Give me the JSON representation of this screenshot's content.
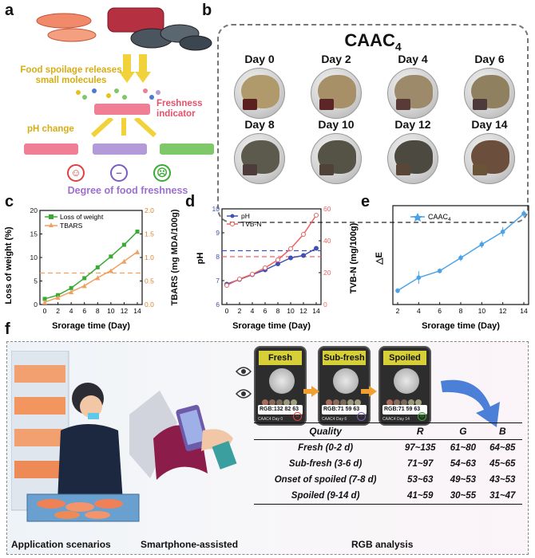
{
  "panel_letters": {
    "a": "a",
    "b": "b",
    "c": "c",
    "d": "d",
    "e": "e",
    "f": "f"
  },
  "panel_a": {
    "spoilage_text": "Food spoilage releases small molecules",
    "indicator_text": "Freshness indicator",
    "ph_change": "pH change",
    "degree": "Degree of food freshness",
    "colors": {
      "pink": "#f07f96",
      "purple": "#b39bd9",
      "green": "#7ec86a",
      "gold": "#e8c21a"
    }
  },
  "panel_b": {
    "title": "CAAC",
    "title_sub": "4",
    "days": [
      "Day 0",
      "Day 2",
      "Day 4",
      "Day 6",
      "Day 8",
      "Day 10",
      "Day 12",
      "Day 14"
    ],
    "shrimp_colors": [
      "#b09a6c",
      "#a78f67",
      "#9c8a6a",
      "#8f8060",
      "#5c5a4c",
      "#555246",
      "#4c4a40",
      "#6b4f3c"
    ],
    "film_colors": [
      "#5a2020",
      "#5c2626",
      "#5a3a36",
      "#4c3b3a",
      "#4d3c3a",
      "#4f4238",
      "#5a4636",
      "#6a5438"
    ]
  },
  "chart_data": [
    {
      "id": "c",
      "type": "line",
      "x": [
        0,
        2,
        4,
        6,
        8,
        10,
        12,
        14
      ],
      "xlabel": "Srorage time (Day)",
      "ylabel": "Loss of weight (%)",
      "y2label": "TBARS (mg MDA/100g)",
      "ylim": [
        0,
        20
      ],
      "y2lim": [
        0,
        2.0
      ],
      "yticks": [
        "0",
        "5",
        "10",
        "15",
        "20"
      ],
      "y2ticks": [
        "0.0",
        "0.5",
        "1.0",
        "1.5",
        "2.0"
      ],
      "threshold_y2": 0.67,
      "series": [
        {
          "name": "Loss of weight",
          "axis": "left",
          "color": "#3aaa35",
          "values": [
            1.2,
            2.0,
            3.5,
            5.6,
            7.9,
            10.2,
            12.7,
            15.5
          ]
        },
        {
          "name": "TBARS",
          "axis": "right",
          "color": "#f0a060",
          "values": [
            0.05,
            0.15,
            0.27,
            0.4,
            0.57,
            0.72,
            0.92,
            1.12
          ]
        }
      ]
    },
    {
      "id": "d",
      "type": "line",
      "x": [
        0,
        2,
        4,
        6,
        8,
        10,
        12,
        14
      ],
      "xlabel": "Srorage time (Day)",
      "ylabel": "pH",
      "y2label": "TVB-N (mg/100g)",
      "ylim": [
        6,
        10
      ],
      "y2lim": [
        0,
        60
      ],
      "yticks": [
        "6",
        "7",
        "8",
        "9",
        "10"
      ],
      "y2ticks": [
        "0",
        "20",
        "40",
        "60"
      ],
      "threshold_y": 8.25,
      "threshold_y2": 30,
      "series": [
        {
          "name": "pH",
          "axis": "left",
          "color": "#3f51b5",
          "values": [
            6.85,
            7.05,
            7.25,
            7.45,
            7.7,
            7.95,
            8.05,
            8.35
          ]
        },
        {
          "name": "TVB-N",
          "axis": "right",
          "color": "#f06060",
          "values": [
            12,
            16,
            19,
            23,
            28,
            35,
            44,
            56
          ]
        }
      ]
    },
    {
      "id": "e",
      "type": "line",
      "x": [
        2,
        4,
        6,
        8,
        10,
        12,
        14
      ],
      "xlabel": "Srorage time (Day)",
      "ylabel": "△E",
      "ylim": [
        0,
        25
      ],
      "yticks": [],
      "xticks": [
        "2",
        "4",
        "6",
        "8",
        "10",
        "12",
        "14"
      ],
      "series": [
        {
          "name": "CAAC4",
          "axis": "left",
          "color": "#4aa3e8",
          "values": [
            3.5,
            6.8,
            8.5,
            11.8,
            15.2,
            18.4,
            23.0
          ],
          "errors": [
            0.6,
            1.6,
            0.6,
            0.8,
            0.9,
            1.2,
            0.9
          ]
        }
      ]
    }
  ],
  "chart_labels": {
    "c_series1": "Loss of weight",
    "c_series2": "TBARS",
    "d_series1": "pH",
    "d_series2": "TVB-N",
    "e_series1": "CAAC",
    "e_series1_sub": "4"
  },
  "panel_f": {
    "phones": [
      {
        "label": "Fresh",
        "rgb": "RGB:132 82 63",
        "caption": "CAAC4  Day 0",
        "face": "☺",
        "face_color": "#e04040"
      },
      {
        "label": "Sub-fresh",
        "rgb": "RGB:71 59 63",
        "caption": "CAAC4  Day 6",
        "face": "–",
        "face_color": "#7a5cc0"
      },
      {
        "label": "Spoiled",
        "rgb": "RGB:71 59 63",
        "caption": "CAAC4  Day 14",
        "face": "☹",
        "face_color": "#3aaa35"
      }
    ],
    "table_headers": [
      "Quality",
      "R",
      "G",
      "B"
    ],
    "table_rows": [
      [
        "Fresh (0-2 d)",
        "97~135",
        "61~80",
        "64~85"
      ],
      [
        "Sub-fresh (3-6 d)",
        "71~97",
        "54~63",
        "45~65"
      ],
      [
        "Onset of spoiled (7-8 d)",
        "53~63",
        "49~53",
        "43~53"
      ],
      [
        "Spoiled (9-14 d)",
        "41~59",
        "30~55",
        "31~47"
      ]
    ],
    "captions": {
      "scene": "Application scenarios",
      "phone": "Smartphone-assisted",
      "rgb": "RGB analysis"
    },
    "header_color": "#d7cf37"
  }
}
